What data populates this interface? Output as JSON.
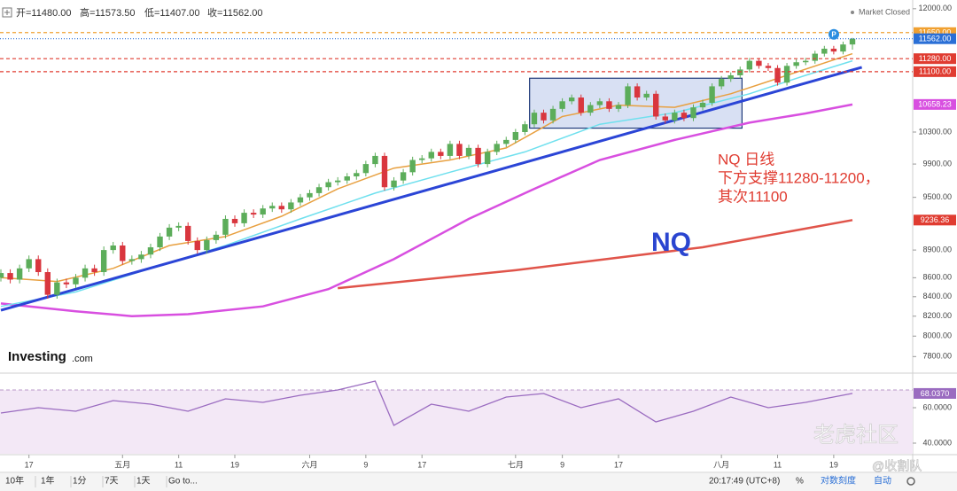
{
  "header": {
    "ohlc": [
      "开=11480.00",
      "高=11573.50",
      "低=11407.00",
      "收=11562.00"
    ],
    "status": "Market Closed"
  },
  "chart_data": {
    "type": "candlestick",
    "categories": [
      null,
      null,
      null,
      "17",
      null,
      null,
      null,
      null,
      null,
      null,
      null,
      null,
      null,
      "五月",
      null,
      null,
      null,
      null,
      null,
      "11",
      null,
      null,
      null,
      null,
      null,
      "19",
      null,
      null,
      null,
      null,
      null,
      null,
      null,
      "六月",
      null,
      null,
      null,
      null,
      null,
      "9",
      null,
      null,
      null,
      null,
      null,
      "17",
      null,
      null,
      null,
      null,
      null,
      null,
      null,
      null,
      null,
      "七月",
      null,
      null,
      null,
      null,
      "9",
      null,
      null,
      null,
      null,
      null,
      "17",
      null,
      null,
      null,
      null,
      null,
      null,
      null,
      null,
      null,
      null,
      "八月",
      null,
      null,
      null,
      null,
      null,
      "11",
      null,
      null,
      null,
      null,
      null,
      "19",
      null,
      null
    ],
    "open": [
      8600,
      8650,
      8580,
      8700,
      8800,
      8660,
      8420,
      8550,
      8530,
      8600,
      8700,
      8660,
      8900,
      8950,
      8780,
      8800,
      8850,
      8930,
      9050,
      9150,
      9170,
      9000,
      8900,
      9010,
      9070,
      9250,
      9200,
      9320,
      9300,
      9370,
      9400,
      9360,
      9440,
      9500,
      9550,
      9620,
      9680,
      9700,
      9750,
      9790,
      9900,
      10000,
      9620,
      9700,
      9800,
      9950,
      9970,
      10050,
      10000,
      10150,
      10000,
      10100,
      9900,
      10050,
      10150,
      10200,
      10300,
      10400,
      10550,
      10450,
      10600,
      10700,
      10750,
      10550,
      10650,
      10700,
      10600,
      10650,
      10900,
      10750,
      10800,
      10500,
      10450,
      10550,
      10480,
      10620,
      10680,
      10900,
      11000,
      11050,
      11130,
      11250,
      11180,
      11150,
      10950,
      11180,
      11230,
      11250,
      11350,
      11420,
      11380,
      11480
    ],
    "high": [
      8690,
      8690,
      8740,
      8840,
      8840,
      8700,
      8590,
      8590,
      8640,
      8740,
      8740,
      8940,
      8990,
      8990,
      8840,
      8890,
      8970,
      9090,
      9190,
      9210,
      9210,
      9040,
      9050,
      9110,
      9290,
      9290,
      9360,
      9360,
      9410,
      9440,
      9440,
      9480,
      9540,
      9590,
      9660,
      9720,
      9740,
      9790,
      9830,
      9940,
      10040,
      10040,
      9740,
      9840,
      9990,
      10010,
      10090,
      10090,
      10190,
      10190,
      10140,
      10140,
      10090,
      10190,
      10240,
      10340,
      10440,
      10590,
      10590,
      10640,
      10740,
      10790,
      10790,
      10690,
      10740,
      10740,
      10690,
      10940,
      10940,
      10840,
      10840,
      10540,
      10590,
      10590,
      10660,
      10720,
      10940,
      11040,
      11090,
      11170,
      11290,
      11290,
      11220,
      11190,
      11220,
      11270,
      11290,
      11390,
      11460,
      11460,
      11520,
      11573.5
    ],
    "low": [
      8560,
      8540,
      8540,
      8660,
      8620,
      8380,
      8380,
      8490,
      8490,
      8560,
      8620,
      8620,
      8860,
      8740,
      8740,
      8760,
      8810,
      8890,
      9010,
      9110,
      8960,
      8860,
      8860,
      8970,
      9030,
      9160,
      9160,
      9260,
      9260,
      9330,
      9320,
      9320,
      9400,
      9460,
      9510,
      9580,
      9640,
      9660,
      9710,
      9750,
      9860,
      9580,
      9580,
      9660,
      9760,
      9910,
      9930,
      9960,
      9960,
      9960,
      9960,
      9860,
      9860,
      10010,
      10110,
      10160,
      10260,
      10360,
      10410,
      10410,
      10560,
      10660,
      10510,
      10510,
      10610,
      10560,
      10560,
      10610,
      10710,
      10710,
      10460,
      10410,
      10410,
      10440,
      10440,
      10580,
      10640,
      10860,
      10960,
      11010,
      11090,
      11140,
      11110,
      10910,
      10910,
      11140,
      11190,
      11210,
      11310,
      11340,
      11340,
      11407
    ],
    "close": [
      8650,
      8580,
      8700,
      8800,
      8660,
      8420,
      8550,
      8530,
      8600,
      8700,
      8660,
      8900,
      8950,
      8780,
      8800,
      8850,
      8930,
      9050,
      9150,
      9170,
      9000,
      8900,
      9010,
      9070,
      9250,
      9200,
      9320,
      9300,
      9370,
      9400,
      9360,
      9440,
      9500,
      9550,
      9620,
      9680,
      9700,
      9750,
      9790,
      9900,
      10000,
      9620,
      9700,
      9800,
      9950,
      9970,
      10050,
      10000,
      10150,
      10000,
      10100,
      9900,
      10050,
      10150,
      10200,
      10300,
      10400,
      10550,
      10450,
      10600,
      10700,
      10750,
      10550,
      10650,
      10700,
      10600,
      10650,
      10900,
      10750,
      10800,
      10500,
      10450,
      10550,
      10480,
      10620,
      10680,
      10900,
      11000,
      11050,
      11130,
      11250,
      11180,
      11150,
      10950,
      11180,
      11230,
      11250,
      11350,
      11420,
      11380,
      11480,
      11562
    ],
    "up_color": "#5cad5a",
    "down_color": "#d9363e",
    "scale": "log",
    "ylim": [
      7650,
      12130
    ],
    "yticks": [
      {
        "value": 12000,
        "label": "12000.00"
      },
      {
        "value": 10300,
        "label": "10300.00"
      },
      {
        "value": 9900,
        "label": "9900.00"
      },
      {
        "value": 9500,
        "label": "9500.00"
      },
      {
        "value": 8900,
        "label": "8900.00"
      },
      {
        "value": 8600,
        "label": "8600.00"
      },
      {
        "value": 8400,
        "label": "8400.00"
      },
      {
        "value": 8200,
        "label": "8200.00"
      },
      {
        "value": 8000,
        "label": "8000.00"
      },
      {
        "value": 7800,
        "label": "7800.00"
      }
    ],
    "price_lines": [
      {
        "value": 11650,
        "label": "11650.00",
        "color": "#f0a030",
        "style": "dashed"
      },
      {
        "value": 11562,
        "label": "11562.00",
        "color": "#2a6fd6",
        "style": "dotted"
      },
      {
        "value": 11280,
        "label": "11280.00",
        "color": "#e03c31",
        "style": "dashed"
      },
      {
        "value": 11100,
        "label": "11100.00",
        "color": "#e03c31",
        "style": "dashed"
      },
      {
        "value": 10658.23,
        "label": "10658.23",
        "color": "#d84fe0",
        "style": "none"
      },
      {
        "value": 9236.36,
        "label": "9236.36",
        "color": "#e03c31",
        "style": "none"
      }
    ],
    "overlays": [
      {
        "x": [
          0,
          8,
          14,
          20,
          28,
          35,
          42,
          50,
          57,
          64,
          72,
          80,
          86,
          91
        ],
        "values": [
          8330,
          8250,
          8200,
          8220,
          8300,
          8480,
          8800,
          9250,
          9600,
          9950,
          10200,
          10420,
          10540,
          10658.23
        ],
        "color": "#d84fe0",
        "width": 2.5
      },
      {
        "x": [
          36,
          55,
          75,
          91
        ],
        "values": [
          8490,
          8680,
          8930,
          9236.36
        ],
        "color": "#e0544a",
        "width": 2.5
      },
      {
        "x": [
          0,
          8,
          16,
          24,
          32,
          40,
          48,
          56,
          64,
          72,
          80,
          86,
          91
        ],
        "values": [
          8300,
          8450,
          8700,
          8950,
          9250,
          9550,
          9800,
          10050,
          10400,
          10550,
          10800,
          11050,
          11250
        ],
        "color": "#6fe0ee",
        "width": 1.5
      },
      {
        "x": [
          0,
          6,
          12,
          18,
          24,
          30,
          36,
          42,
          48,
          54,
          60,
          66,
          72,
          78,
          84,
          91
        ],
        "values": [
          8600,
          8560,
          8700,
          8950,
          9050,
          9280,
          9600,
          9850,
          9950,
          10100,
          10500,
          10650,
          10620,
          10800,
          11050,
          11350
        ],
        "color": "#e8a040",
        "width": 1.5
      },
      {
        "x": [
          0,
          92
        ],
        "values": [
          8260,
          11160
        ],
        "color": "#2b45d6",
        "width": 3
      }
    ],
    "box": {
      "x": [
        56.5,
        79.2
      ],
      "values": [
        10350,
        11010
      ],
      "color": "#1f3a7a"
    },
    "marker": "P",
    "annotations": [
      "NQ 日线",
      "下方支撑11280-11200，",
      "其次11100"
    ],
    "label_big": "NQ",
    "rsi": {
      "type": "line",
      "x": [
        0,
        4,
        8,
        12,
        16,
        20,
        24,
        28,
        32,
        36,
        40,
        42,
        46,
        50,
        54,
        58,
        62,
        66,
        70,
        74,
        78,
        82,
        86,
        91
      ],
      "values": [
        57,
        60,
        58,
        64,
        62,
        58,
        65,
        63,
        67,
        70,
        75,
        50,
        62,
        58,
        66,
        68,
        60,
        65,
        52,
        58,
        66,
        60,
        63,
        68.037
      ],
      "ylim": [
        34,
        77.5
      ],
      "yticks": [
        {
          "value": 60,
          "label": "60.0000"
        },
        {
          "value": 40,
          "label": "40.0000"
        }
      ],
      "tag": {
        "value": 68.037,
        "label": "68.0370"
      },
      "band": [
        70,
        30
      ],
      "color": "#9a6bc0"
    }
  },
  "logo": {
    "brand": "Investing",
    "suffix": ".com"
  },
  "watermark": [
    "老虎社区",
    "@收割队"
  ],
  "toolbar": {
    "ranges": [
      "10年",
      "1年",
      "1分",
      "7天",
      "1天"
    ],
    "goto": "Go to...",
    "time": "20:17:49 (UTC+8)",
    "percent": "%",
    "log": "对数刻度",
    "auto": "自动"
  }
}
